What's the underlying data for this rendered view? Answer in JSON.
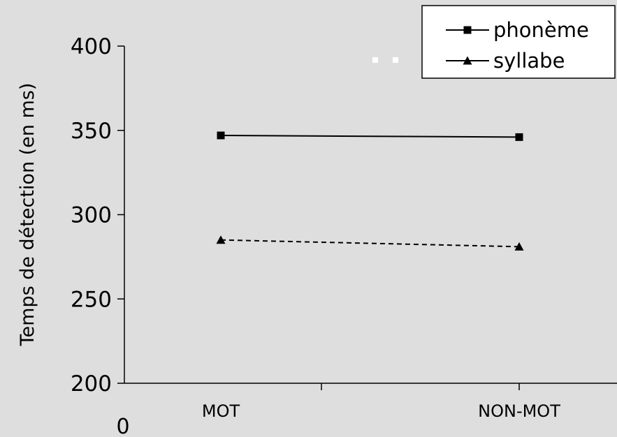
{
  "chart_data": {
    "type": "line",
    "categories": [
      "MOT",
      "NON-MOT"
    ],
    "x_origin_label": "0",
    "ylabel": "Temps de détection (en ms)",
    "ylim": [
      200,
      400
    ],
    "y_ticks": [
      200,
      250,
      300,
      350,
      400
    ],
    "grid": false,
    "legend_position": "top-right",
    "series": [
      {
        "name": "phonème",
        "values": [
          347,
          346
        ],
        "marker": "square",
        "line_style": "solid",
        "color": "#000000"
      },
      {
        "name": "syllabe",
        "values": [
          285,
          281
        ],
        "marker": "triangle",
        "line_style": "dashed",
        "color": "#000000"
      }
    ]
  }
}
